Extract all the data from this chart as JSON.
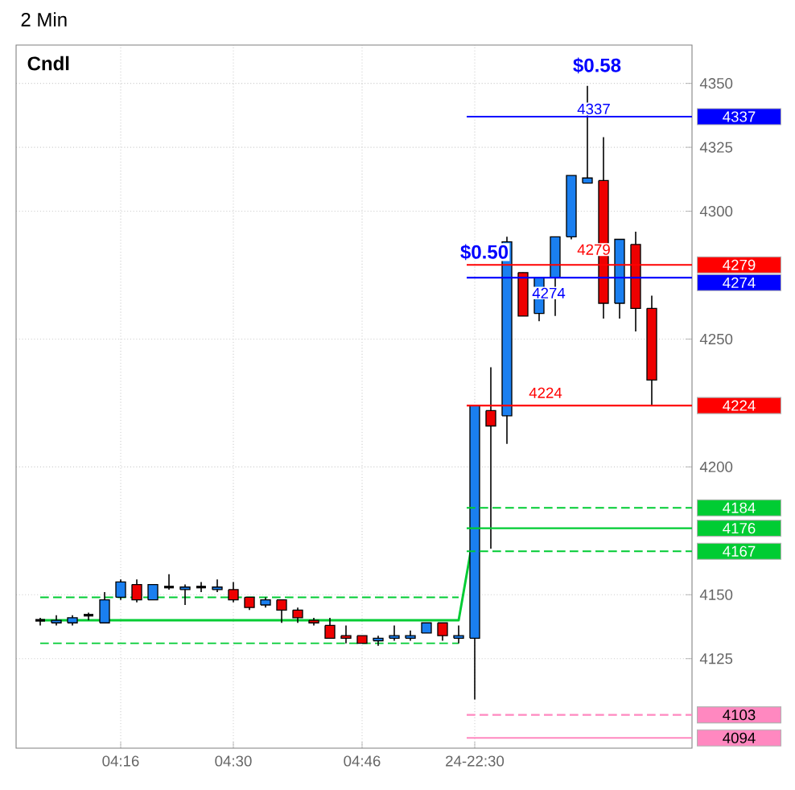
{
  "chart_data": {
    "type": "candlestick",
    "title": "2 Min",
    "subtitle": "Cndl",
    "categories": [
      null,
      null,
      null,
      null,
      null,
      "04:16",
      null,
      null,
      null,
      null,
      null,
      null,
      "04:30",
      null,
      null,
      null,
      null,
      null,
      null,
      null,
      "04:46",
      null,
      null,
      null,
      null,
      null,
      null,
      "24-22:30",
      null,
      null,
      null,
      null,
      null,
      null,
      null,
      null,
      null,
      null,
      null
    ],
    "ohlc": [
      [
        4140,
        4141,
        4138,
        4140
      ],
      [
        4139,
        4142,
        4138,
        4140
      ],
      [
        4139,
        4142,
        4138,
        4141
      ],
      [
        4142,
        4143,
        4140,
        4142
      ],
      [
        4139,
        4151,
        4139,
        4148
      ],
      [
        4149,
        4156,
        4148,
        4155
      ],
      [
        4154,
        4156,
        4147,
        4148
      ],
      [
        4148,
        4154,
        4148,
        4154
      ],
      [
        4153,
        4158,
        4152,
        4153
      ],
      [
        4152,
        4154,
        4146,
        4153
      ],
      [
        4153,
        4155,
        4151,
        4153
      ],
      [
        4152,
        4156,
        4151,
        4153
      ],
      [
        4152,
        4155,
        4147,
        4148
      ],
      [
        4149,
        4149,
        4144,
        4145
      ],
      [
        4146,
        4149,
        4145,
        4148
      ],
      [
        4148,
        4148,
        4139,
        4144
      ],
      [
        4144,
        4145,
        4139,
        4141
      ],
      [
        4140,
        4141,
        4138,
        4139
      ],
      [
        4138,
        4141,
        4133,
        4133
      ],
      [
        4134,
        4138,
        4131,
        4133
      ],
      [
        4134,
        4134,
        4131,
        4131
      ],
      [
        4132,
        4134,
        4130,
        4133
      ],
      [
        4133,
        4138,
        4132,
        4134
      ],
      [
        4133,
        4136,
        4132,
        4134
      ],
      [
        4135,
        4139,
        4135,
        4139
      ],
      [
        4139,
        4139,
        4132,
        4134
      ],
      [
        4133,
        4138,
        4131,
        4134
      ],
      [
        4133,
        4224,
        4109,
        4224
      ],
      [
        4222,
        4239,
        4168,
        4216
      ],
      [
        4220,
        4290,
        4209,
        4288
      ],
      [
        4276,
        4276,
        4259,
        4259
      ],
      [
        4260,
        4274,
        4257,
        4274
      ],
      [
        4274,
        4290,
        4259,
        4290
      ],
      [
        4290,
        4314,
        4289,
        4314
      ],
      [
        4311,
        4349,
        4311,
        4313
      ],
      [
        4312,
        4329,
        4258,
        4264
      ],
      [
        4264,
        4289,
        4258,
        4289
      ],
      [
        4287,
        4292,
        4253,
        4262
      ],
      [
        4262,
        4267,
        4224,
        4234
      ]
    ],
    "colors": [
      "#000000",
      "#1a7ff0",
      "#1a7ff0",
      "#000000",
      "#1a7ff0",
      "#1a7ff0",
      "#ee0000",
      "#1a7ff0",
      "#000000",
      "#1a7ff0",
      "#000000",
      "#1a7ff0",
      "#ee0000",
      "#ee0000",
      "#1a7ff0",
      "#ee0000",
      "#ee0000",
      "#ee0000",
      "#ee0000",
      "#ee0000",
      "#ee0000",
      "#1a7ff0",
      "#1a7ff0",
      "#1a7ff0",
      "#1a7ff0",
      "#ee0000",
      "#1a7ff0",
      "#1a7ff0",
      "#ee0000",
      "#1a7ff0",
      "#ee0000",
      "#1a7ff0",
      "#1a7ff0",
      "#1a7ff0",
      "#1a7ff0",
      "#ee0000",
      "#1a7ff0",
      "#ee0000",
      "#ee0000"
    ],
    "series": [
      {
        "type": "line",
        "color": "#00cc33",
        "line_style": "solid",
        "values": [
          4140,
          4140,
          4140,
          4140,
          4140,
          4140,
          4140,
          4140,
          4140,
          4140,
          4140,
          4140,
          4140,
          4140,
          4140,
          4140,
          4140,
          4140,
          4140,
          4140,
          4140,
          4140,
          4140,
          4140,
          4140,
          4140,
          4140,
          4176,
          null,
          null,
          null,
          null,
          null,
          null,
          null,
          null,
          null,
          null,
          null
        ]
      },
      {
        "type": "line",
        "color": "#00cc33",
        "line_style": "dashed",
        "values": [
          4149,
          4149,
          4149,
          4149,
          4149,
          4149,
          4149,
          4149,
          4149,
          4149,
          4149,
          4149,
          4149,
          4149,
          4149,
          4149,
          4149,
          4149,
          4149,
          4149,
          4149,
          4149,
          4149,
          4149,
          4149,
          4149,
          4149,
          null,
          null,
          null,
          null,
          null,
          null,
          null,
          null,
          null,
          null,
          null,
          null
        ]
      },
      {
        "type": "line",
        "color": "#00cc33",
        "line_style": "dashed",
        "values": [
          4131,
          4131,
          4131,
          4131,
          4131,
          4131,
          4131,
          4131,
          4131,
          4131,
          4131,
          4131,
          4131,
          4131,
          4131,
          4131,
          4131,
          4131,
          4131,
          4131,
          4131,
          4131,
          4131,
          4131,
          4131,
          4131,
          4131,
          null,
          null,
          null,
          null,
          null,
          null,
          null,
          null,
          null,
          null,
          null,
          null
        ]
      }
    ],
    "ref_lines": [
      {
        "axis": "y",
        "value": 4337,
        "label": "4337",
        "color": "#0000ff",
        "line_style": "solid"
      },
      {
        "axis": "y",
        "value": 4279,
        "label": "4279",
        "color": "#ff0000",
        "line_style": "solid"
      },
      {
        "axis": "y",
        "value": 4274,
        "label": "4274",
        "color": "#0000ff",
        "line_style": "solid"
      },
      {
        "axis": "y",
        "value": 4224,
        "label": "4224",
        "color": "#ff0000",
        "line_style": "solid"
      },
      {
        "axis": "y",
        "value": 4184,
        "label": "4184",
        "color": "#00cc33",
        "line_style": "dashed"
      },
      {
        "axis": "y",
        "value": 4176,
        "label": "4176",
        "color": "#00cc33",
        "line_style": "solid"
      },
      {
        "axis": "y",
        "value": 4167,
        "label": "4167",
        "color": "#00cc33",
        "line_style": "dashed"
      },
      {
        "axis": "y",
        "value": 4103,
        "label": "4103",
        "color": "#ff88c0",
        "line_style": "dashed"
      },
      {
        "axis": "y",
        "value": 4094,
        "label": "4094",
        "color": "#ff88c0",
        "line_style": "solid"
      }
    ],
    "annotations": [
      "$0.50",
      "$0.58",
      "4274",
      "4224",
      "4279",
      "4337"
    ],
    "ylim": [
      4090,
      4365
    ],
    "yticks": [
      4125,
      4150,
      4200,
      4250,
      4300,
      4325,
      4350
    ],
    "grid": true
  }
}
